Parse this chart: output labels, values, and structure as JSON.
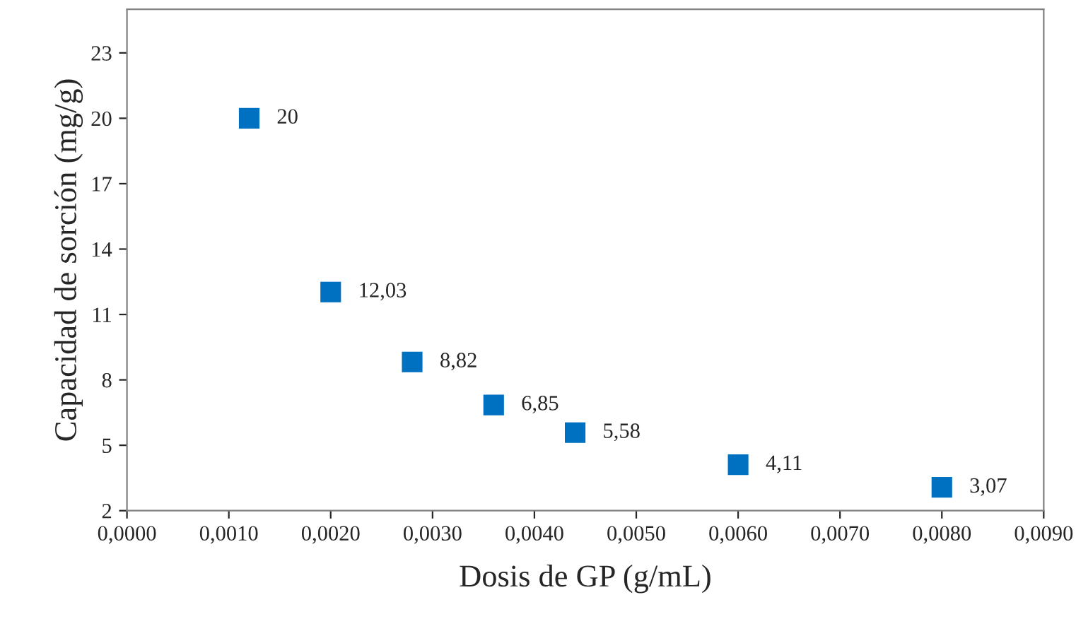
{
  "chart_data": {
    "type": "scatter",
    "xlabel": "Dosis de GP (g/mL)",
    "ylabel": "Capacidad de sorción (mg/g)",
    "x": [
      0.0012,
      0.002,
      0.0028,
      0.0036,
      0.0044,
      0.006,
      0.008
    ],
    "values": [
      20,
      12.03,
      8.82,
      6.85,
      5.58,
      4.11,
      3.07
    ],
    "value_labels": [
      "20",
      "12,03",
      "8,82",
      "6,85",
      "5,58",
      "4,11",
      "3,07"
    ],
    "color": "#0070c0",
    "marker": "square",
    "grid": false,
    "legend": false,
    "xlim": [
      0,
      0.009
    ],
    "ylim": [
      2,
      25
    ],
    "xticks": [
      {
        "value": 0,
        "label": "0,0000"
      },
      {
        "value": 0.001,
        "label": "0,0010"
      },
      {
        "value": 0.002,
        "label": "0,0020"
      },
      {
        "value": 0.003,
        "label": "0,0030"
      },
      {
        "value": 0.004,
        "label": "0,0040"
      },
      {
        "value": 0.005,
        "label": "0,0050"
      },
      {
        "value": 0.006,
        "label": "0,0060"
      },
      {
        "value": 0.007,
        "label": "0,0070"
      },
      {
        "value": 0.008,
        "label": "0,0080"
      },
      {
        "value": 0.009,
        "label": "0,0090"
      }
    ],
    "yticks": [
      2,
      5,
      8,
      11,
      14,
      17,
      20,
      23
    ]
  }
}
